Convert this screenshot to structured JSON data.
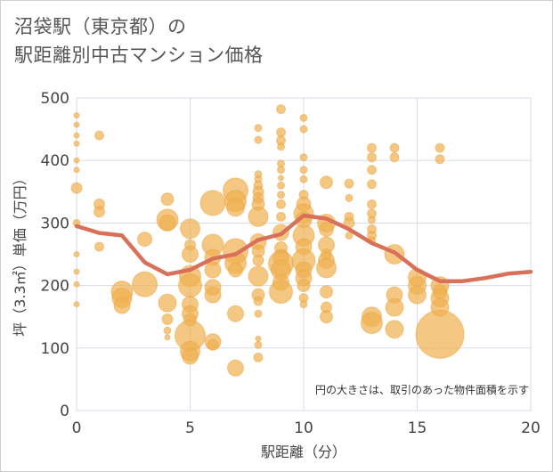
{
  "title": {
    "line1": "沼袋駅（東京都）の",
    "line2": "駅距離別中古マンション価格"
  },
  "chart_data": {
    "type": "scatter",
    "xlabel": "駅距離（分）",
    "ylabel": "坪（3.3㎡）単価（万円）",
    "xlim": [
      0,
      20
    ],
    "ylim": [
      0,
      500
    ],
    "xticks": [
      "0",
      "5",
      "10",
      "15",
      "20"
    ],
    "yticks": [
      "0",
      "100",
      "200",
      "300",
      "400",
      "500"
    ],
    "grid": true,
    "note": "円の大きさは、取引のあった物件面積を示す",
    "colors": {
      "bubble": "#f0b252",
      "trend": "#d9705a",
      "grid": "#d8dbe8"
    },
    "trend_line": {
      "x": [
        0,
        1,
        2,
        3,
        4,
        5,
        6,
        7,
        8,
        9,
        10,
        11,
        12,
        13,
        14,
        15,
        16,
        17,
        18,
        19,
        20
      ],
      "y": [
        295,
        284,
        280,
        237,
        218,
        225,
        243,
        250,
        273,
        282,
        312,
        307,
        290,
        268,
        253,
        225,
        207,
        207,
        212,
        219,
        222
      ]
    },
    "bubbles": [
      {
        "x": 0,
        "y": 472,
        "s": 3
      },
      {
        "x": 0,
        "y": 457,
        "s": 3
      },
      {
        "x": 0,
        "y": 440,
        "s": 3
      },
      {
        "x": 0,
        "y": 427,
        "s": 3
      },
      {
        "x": 0,
        "y": 400,
        "s": 3
      },
      {
        "x": 0,
        "y": 385,
        "s": 3
      },
      {
        "x": 0,
        "y": 356,
        "s": 6
      },
      {
        "x": 0,
        "y": 300,
        "s": 4
      },
      {
        "x": 0,
        "y": 250,
        "s": 3
      },
      {
        "x": 0,
        "y": 222,
        "s": 3
      },
      {
        "x": 0,
        "y": 202,
        "s": 3
      },
      {
        "x": 0,
        "y": 170,
        "s": 3
      },
      {
        "x": 1,
        "y": 440,
        "s": 5
      },
      {
        "x": 1,
        "y": 330,
        "s": 6
      },
      {
        "x": 1,
        "y": 318,
        "s": 6
      },
      {
        "x": 1,
        "y": 262,
        "s": 5
      },
      {
        "x": 2,
        "y": 190,
        "s": 12
      },
      {
        "x": 2,
        "y": 180,
        "s": 11
      },
      {
        "x": 2,
        "y": 168,
        "s": 9
      },
      {
        "x": 3,
        "y": 274,
        "s": 8
      },
      {
        "x": 3,
        "y": 202,
        "s": 14
      },
      {
        "x": 4,
        "y": 338,
        "s": 7
      },
      {
        "x": 4,
        "y": 305,
        "s": 12
      },
      {
        "x": 4,
        "y": 300,
        "s": 9
      },
      {
        "x": 4,
        "y": 172,
        "s": 10
      },
      {
        "x": 4,
        "y": 146,
        "s": 6
      },
      {
        "x": 4,
        "y": 128,
        "s": 4
      },
      {
        "x": 4,
        "y": 117,
        "s": 3
      },
      {
        "x": 5,
        "y": 291,
        "s": 11
      },
      {
        "x": 5,
        "y": 265,
        "s": 6
      },
      {
        "x": 5,
        "y": 250,
        "s": 9
      },
      {
        "x": 5,
        "y": 215,
        "s": 12
      },
      {
        "x": 5,
        "y": 200,
        "s": 13
      },
      {
        "x": 5,
        "y": 170,
        "s": 9
      },
      {
        "x": 5,
        "y": 155,
        "s": 9
      },
      {
        "x": 5,
        "y": 145,
        "s": 7
      },
      {
        "x": 5,
        "y": 120,
        "s": 17
      },
      {
        "x": 5,
        "y": 95,
        "s": 11
      },
      {
        "x": 5,
        "y": 87,
        "s": 9
      },
      {
        "x": 6,
        "y": 332,
        "s": 14
      },
      {
        "x": 6,
        "y": 265,
        "s": 12
      },
      {
        "x": 6,
        "y": 245,
        "s": 9
      },
      {
        "x": 6,
        "y": 225,
        "s": 9
      },
      {
        "x": 6,
        "y": 197,
        "s": 9
      },
      {
        "x": 6,
        "y": 185,
        "s": 9
      },
      {
        "x": 6,
        "y": 110,
        "s": 9
      },
      {
        "x": 6,
        "y": 105,
        "s": 6
      },
      {
        "x": 7,
        "y": 352,
        "s": 14
      },
      {
        "x": 7,
        "y": 335,
        "s": 12
      },
      {
        "x": 7,
        "y": 325,
        "s": 10
      },
      {
        "x": 7,
        "y": 255,
        "s": 14
      },
      {
        "x": 7,
        "y": 236,
        "s": 12
      },
      {
        "x": 7,
        "y": 225,
        "s": 8
      },
      {
        "x": 7,
        "y": 155,
        "s": 9
      },
      {
        "x": 7,
        "y": 68,
        "s": 9
      },
      {
        "x": 8,
        "y": 452,
        "s": 4
      },
      {
        "x": 8,
        "y": 433,
        "s": 4
      },
      {
        "x": 8,
        "y": 378,
        "s": 4
      },
      {
        "x": 8,
        "y": 370,
        "s": 4
      },
      {
        "x": 8,
        "y": 360,
        "s": 5
      },
      {
        "x": 8,
        "y": 350,
        "s": 6
      },
      {
        "x": 8,
        "y": 340,
        "s": 6
      },
      {
        "x": 8,
        "y": 330,
        "s": 7
      },
      {
        "x": 8,
        "y": 310,
        "s": 11
      },
      {
        "x": 8,
        "y": 270,
        "s": 9
      },
      {
        "x": 8,
        "y": 255,
        "s": 7
      },
      {
        "x": 8,
        "y": 240,
        "s": 6
      },
      {
        "x": 8,
        "y": 215,
        "s": 11
      },
      {
        "x": 8,
        "y": 185,
        "s": 7
      },
      {
        "x": 8,
        "y": 175,
        "s": 5
      },
      {
        "x": 8,
        "y": 155,
        "s": 4
      },
      {
        "x": 8,
        "y": 115,
        "s": 3
      },
      {
        "x": 8,
        "y": 105,
        "s": 4
      },
      {
        "x": 8,
        "y": 85,
        "s": 5
      },
      {
        "x": 9,
        "y": 482,
        "s": 5
      },
      {
        "x": 9,
        "y": 445,
        "s": 5
      },
      {
        "x": 9,
        "y": 432,
        "s": 5
      },
      {
        "x": 9,
        "y": 422,
        "s": 4
      },
      {
        "x": 9,
        "y": 395,
        "s": 4
      },
      {
        "x": 9,
        "y": 385,
        "s": 4
      },
      {
        "x": 9,
        "y": 372,
        "s": 3
      },
      {
        "x": 9,
        "y": 360,
        "s": 4
      },
      {
        "x": 9,
        "y": 345,
        "s": 4
      },
      {
        "x": 9,
        "y": 330,
        "s": 5
      },
      {
        "x": 9,
        "y": 310,
        "s": 5
      },
      {
        "x": 9,
        "y": 285,
        "s": 9
      },
      {
        "x": 9,
        "y": 260,
        "s": 7
      },
      {
        "x": 9,
        "y": 245,
        "s": 9
      },
      {
        "x": 9,
        "y": 235,
        "s": 14
      },
      {
        "x": 9,
        "y": 225,
        "s": 11
      },
      {
        "x": 9,
        "y": 205,
        "s": 9
      },
      {
        "x": 9,
        "y": 190,
        "s": 13
      },
      {
        "x": 10,
        "y": 468,
        "s": 4
      },
      {
        "x": 10,
        "y": 450,
        "s": 4
      },
      {
        "x": 10,
        "y": 405,
        "s": 4
      },
      {
        "x": 10,
        "y": 385,
        "s": 4
      },
      {
        "x": 10,
        "y": 370,
        "s": 4
      },
      {
        "x": 10,
        "y": 345,
        "s": 5
      },
      {
        "x": 10,
        "y": 330,
        "s": 8
      },
      {
        "x": 10,
        "y": 315,
        "s": 11
      },
      {
        "x": 10,
        "y": 305,
        "s": 9
      },
      {
        "x": 10,
        "y": 280,
        "s": 12
      },
      {
        "x": 10,
        "y": 262,
        "s": 9
      },
      {
        "x": 10,
        "y": 240,
        "s": 13
      },
      {
        "x": 10,
        "y": 225,
        "s": 9
      },
      {
        "x": 10,
        "y": 212,
        "s": 9
      },
      {
        "x": 10,
        "y": 200,
        "s": 7
      },
      {
        "x": 10,
        "y": 180,
        "s": 5
      },
      {
        "x": 10,
        "y": 170,
        "s": 4
      },
      {
        "x": 11,
        "y": 365,
        "s": 7
      },
      {
        "x": 11,
        "y": 300,
        "s": 10
      },
      {
        "x": 11,
        "y": 290,
        "s": 8
      },
      {
        "x": 11,
        "y": 265,
        "s": 9
      },
      {
        "x": 11,
        "y": 250,
        "s": 6
      },
      {
        "x": 11,
        "y": 240,
        "s": 9
      },
      {
        "x": 11,
        "y": 228,
        "s": 11
      },
      {
        "x": 11,
        "y": 190,
        "s": 7
      },
      {
        "x": 11,
        "y": 165,
        "s": 6
      },
      {
        "x": 11,
        "y": 150,
        "s": 7
      },
      {
        "x": 12,
        "y": 363,
        "s": 5
      },
      {
        "x": 12,
        "y": 340,
        "s": 4
      },
      {
        "x": 12,
        "y": 310,
        "s": 5
      },
      {
        "x": 12,
        "y": 300,
        "s": 6
      },
      {
        "x": 12,
        "y": 280,
        "s": 4
      },
      {
        "x": 13,
        "y": 420,
        "s": 5
      },
      {
        "x": 13,
        "y": 405,
        "s": 5
      },
      {
        "x": 13,
        "y": 385,
        "s": 5
      },
      {
        "x": 13,
        "y": 362,
        "s": 5
      },
      {
        "x": 13,
        "y": 330,
        "s": 5
      },
      {
        "x": 13,
        "y": 315,
        "s": 5
      },
      {
        "x": 13,
        "y": 305,
        "s": 4
      },
      {
        "x": 13,
        "y": 290,
        "s": 5
      },
      {
        "x": 13,
        "y": 280,
        "s": 5
      },
      {
        "x": 13,
        "y": 272,
        "s": 4
      },
      {
        "x": 13,
        "y": 150,
        "s": 11
      },
      {
        "x": 13,
        "y": 140,
        "s": 12
      },
      {
        "x": 14,
        "y": 420,
        "s": 5
      },
      {
        "x": 14,
        "y": 405,
        "s": 5
      },
      {
        "x": 14,
        "y": 250,
        "s": 11
      },
      {
        "x": 14,
        "y": 185,
        "s": 9
      },
      {
        "x": 14,
        "y": 165,
        "s": 10
      },
      {
        "x": 14,
        "y": 130,
        "s": 10
      },
      {
        "x": 15,
        "y": 213,
        "s": 10
      },
      {
        "x": 15,
        "y": 200,
        "s": 10
      },
      {
        "x": 15,
        "y": 185,
        "s": 10
      },
      {
        "x": 16,
        "y": 420,
        "s": 5
      },
      {
        "x": 16,
        "y": 402,
        "s": 5
      },
      {
        "x": 16,
        "y": 200,
        "s": 10
      },
      {
        "x": 16,
        "y": 190,
        "s": 8
      },
      {
        "x": 16,
        "y": 180,
        "s": 10
      },
      {
        "x": 16,
        "y": 165,
        "s": 10
      },
      {
        "x": 16,
        "y": 122,
        "s": 27
      }
    ]
  }
}
